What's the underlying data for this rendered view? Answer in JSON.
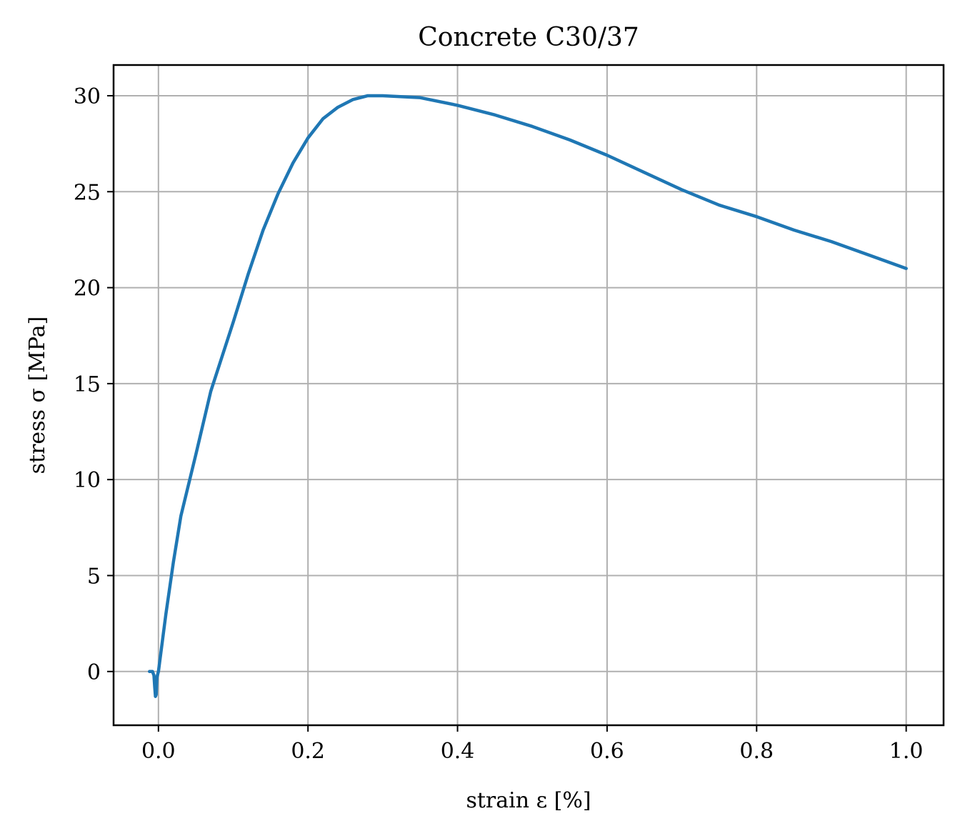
{
  "chart_data": {
    "type": "line",
    "title": "Concrete C30/37",
    "xlabel": "strain ε [%]",
    "ylabel": "stress σ [MPa]",
    "xlim": [
      -0.06,
      1.05
    ],
    "ylim": [
      -2.8,
      31.6
    ],
    "xticks": [
      0.0,
      0.2,
      0.4,
      0.6,
      0.8,
      1.0
    ],
    "xtick_labels": [
      "0.0",
      "0.2",
      "0.4",
      "0.6",
      "0.8",
      "1.0"
    ],
    "yticks": [
      0,
      5,
      10,
      15,
      20,
      25,
      30
    ],
    "ytick_labels": [
      "0",
      "5",
      "10",
      "15",
      "20",
      "25",
      "30"
    ],
    "grid": true,
    "legend": "none",
    "series": [
      {
        "color": "#1f77b4",
        "x": [
          -0.012,
          -0.008,
          -0.006,
          -0.005,
          -0.004,
          -0.003,
          -0.002,
          0.0,
          0.01,
          0.02,
          0.03,
          0.05,
          0.07,
          0.1,
          0.12,
          0.14,
          0.16,
          0.18,
          0.2,
          0.22,
          0.24,
          0.26,
          0.28,
          0.3,
          0.35,
          0.4,
          0.45,
          0.5,
          0.55,
          0.6,
          0.65,
          0.7,
          0.75,
          0.8,
          0.85,
          0.9,
          0.95,
          1.0
        ],
        "y": [
          0.0,
          0.0,
          -0.2,
          -0.8,
          -1.3,
          -1.2,
          -0.3,
          0.0,
          3.0,
          5.7,
          8.1,
          11.3,
          14.6,
          18.2,
          20.7,
          23.0,
          24.9,
          26.5,
          27.8,
          28.8,
          29.4,
          29.8,
          30.0,
          30.0,
          29.9,
          29.5,
          29.0,
          28.4,
          27.7,
          26.9,
          26.0,
          25.1,
          24.3,
          23.7,
          23.0,
          22.4,
          21.7,
          21.0
        ]
      }
    ]
  },
  "colors": {
    "line": "#1f77b4",
    "grid": "#b0b0b0",
    "frame": "#000000"
  }
}
